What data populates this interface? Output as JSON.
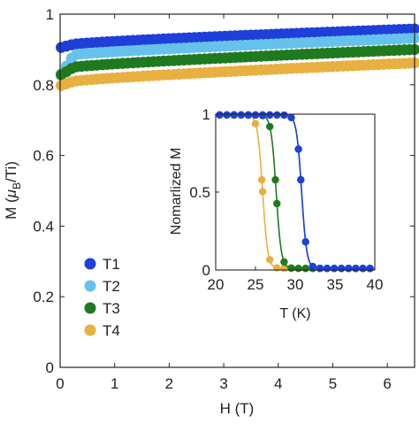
{
  "chart_data": [
    {
      "type": "scatter",
      "xlabel": "H (T)",
      "ylabel_parts": [
        "M (",
        "μ",
        "B",
        "/Ti)"
      ],
      "xlim": [
        0,
        6.5
      ],
      "ylim": [
        0,
        1.0
      ],
      "xticks": [
        0,
        1,
        2,
        3,
        4,
        5,
        6
      ],
      "yticks": [
        0,
        0.2,
        0.4,
        0.6,
        0.8,
        1
      ],
      "xtick_labels": [
        "0",
        "1",
        "2",
        "3",
        "4",
        "5",
        "6"
      ],
      "ytick_labels": [
        "0",
        "0.2",
        "0.4",
        "0.6",
        "0.8",
        "1"
      ],
      "legend_position": "lower-left",
      "series": [
        {
          "name": "T1",
          "color": "#1f3fd9",
          "m_start": 0.905,
          "m_plateau": 0.915,
          "m_end": 0.958
        },
        {
          "name": "T2",
          "color": "#66c2ea",
          "m_start": 0.826,
          "m_plateau": 0.885,
          "m_end": 0.932
        },
        {
          "name": "T3",
          "color": "#1f7a1f",
          "m_start": 0.826,
          "m_plateau": 0.85,
          "m_end": 0.9
        },
        {
          "name": "T4",
          "color": "#e8b040",
          "m_start": 0.797,
          "m_plateau": 0.81,
          "m_end": 0.862
        }
      ]
    },
    {
      "type": "scatter",
      "xlabel": "T (K)",
      "ylabel": "Nomarlized M",
      "xlim": [
        20,
        40
      ],
      "ylim": [
        0,
        1
      ],
      "xticks": [
        20,
        25,
        30,
        35,
        40
      ],
      "yticks": [
        0,
        0.5,
        1
      ],
      "xtick_labels": [
        "20",
        "25",
        "30",
        "35",
        "40"
      ],
      "ytick_labels": [
        "0",
        "0.5",
        "1"
      ],
      "series": [
        {
          "name": "T1",
          "color": "#1f3fd9",
          "transition_temperature_K": 30.8
        },
        {
          "name": "T2",
          "color": "#66c2ea",
          "transition_temperature_K": 30.8
        },
        {
          "name": "T3",
          "color": "#1f7a1f",
          "transition_temperature_K": 27.6
        },
        {
          "name": "T4",
          "color": "#e8b040",
          "transition_temperature_K": 25.9
        }
      ]
    }
  ]
}
